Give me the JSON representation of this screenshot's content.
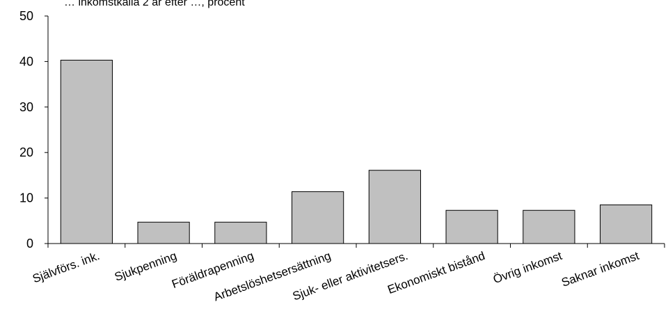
{
  "chart_data": {
    "type": "bar",
    "title": "… inkomstkälla 2 år efter …, procent",
    "xlabel": "",
    "ylabel": "",
    "ylim": [
      0,
      50
    ],
    "yticks": [
      0,
      10,
      20,
      30,
      40,
      50
    ],
    "grid": false,
    "legend": "none",
    "bar_color": "#c0c0c0",
    "bar_edge_color": "#000000",
    "categories": [
      "Självförs. ink.",
      "Sjukpenning",
      "Föräldrapenning",
      "Arbetslöshetsersättning",
      "Sjuk- eller aktivitetsers.",
      "Ekonomiskt bistånd",
      "Övrig inkomst",
      "Saknar inkomst"
    ],
    "values": [
      40.3,
      4.7,
      4.7,
      11.4,
      16.1,
      7.3,
      7.3,
      8.5
    ]
  }
}
